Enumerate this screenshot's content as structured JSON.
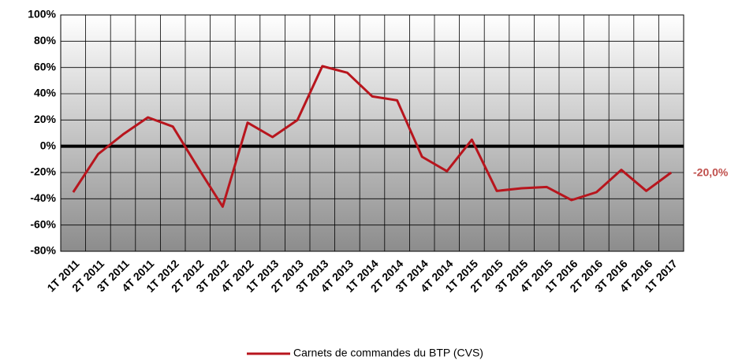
{
  "chart_data": {
    "type": "line",
    "categories": [
      "1T 2011",
      "2T 2011",
      "3T 2011",
      "4T 2011",
      "1T 2012",
      "2T 2012",
      "3T 2012",
      "4T 2012",
      "1T 2013",
      "2T 2013",
      "3T 2013",
      "4T 2013",
      "1T 2014",
      "2T 2014",
      "3T 2014",
      "4T 2014",
      "1T 2015",
      "2T 2015",
      "3T 2015",
      "4T 2015",
      "1T 2016",
      "2T 2016",
      "3T 2016",
      "4T 2016",
      "1T 2017"
    ],
    "series": [
      {
        "name": "Carnets de commandes du BTP (CVS)",
        "color": "#b8151d",
        "values": [
          -35,
          -6,
          9,
          22,
          15,
          -16,
          -46,
          18,
          7,
          20,
          61,
          56,
          38,
          35,
          -8,
          -19,
          5,
          -34,
          -32,
          -31,
          -41,
          -35,
          -18,
          -34,
          -20
        ],
        "value_labels": [
          null,
          null,
          null,
          null,
          null,
          null,
          null,
          null,
          null,
          null,
          null,
          null,
          null,
          null,
          null,
          null,
          null,
          null,
          null,
          null,
          null,
          null,
          null,
          null,
          "-20,0%"
        ]
      }
    ],
    "ylim": [
      -80,
      100
    ],
    "yticks": [
      {
        "value": -80,
        "label": "-80%"
      },
      {
        "value": -60,
        "label": "-60%"
      },
      {
        "value": -40,
        "label": "-40%"
      },
      {
        "value": -20,
        "label": "-20%"
      },
      {
        "value": 0,
        "label": "0%"
      },
      {
        "value": 20,
        "label": "20%"
      },
      {
        "value": 40,
        "label": "40%"
      },
      {
        "value": 60,
        "label": "60%"
      },
      {
        "value": 80,
        "label": "80%"
      },
      {
        "value": 100,
        "label": "100%"
      }
    ],
    "grid": true,
    "legend": "bottom"
  }
}
